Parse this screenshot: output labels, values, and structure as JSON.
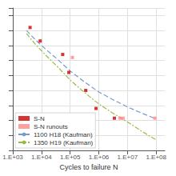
{
  "chart_data": {
    "type": "scatter",
    "xlabel": "Cycles to failure Ν",
    "log": "x",
    "grid": true,
    "legend": "lower left",
    "tick_labels": "x",
    "xlim": [
      1000,
      200000000
    ],
    "ylim": [
      0.1,
      1.05
    ],
    "xticks": [
      {
        "value": 1000,
        "label": "1.E+03"
      },
      {
        "value": 10000,
        "label": "1.E+04"
      },
      {
        "value": 100000,
        "label": "1.E+05"
      },
      {
        "value": 1000000,
        "label": "1.E+06"
      },
      {
        "value": 10000000,
        "label": "1.E+07"
      },
      {
        "value": 100000000,
        "label": "1.E+08"
      }
    ],
    "yticks": [
      0.1,
      0.2,
      0.3,
      0.4,
      0.5,
      0.6,
      0.7,
      0.8,
      0.9,
      1.0
    ],
    "series": [
      {
        "name": "S-N",
        "type": "scatter",
        "marker": "square",
        "color": "#cc0000",
        "x": [
          4000,
          9000,
          55000,
          90000,
          350000,
          800000,
          3500000
        ],
        "values": [
          0.92,
          0.83,
          0.74,
          0.62,
          0.5,
          0.38,
          0.315
        ]
      },
      {
        "name": "S-N runouts",
        "type": "scatter",
        "marker": "square",
        "color": "#ff8888",
        "x": [
          120000,
          5500000,
          7000000,
          90000000
        ],
        "values": [
          0.72,
          0.315,
          0.315,
          0.315
        ]
      },
      {
        "name": "1100 H18 (Kaufman)",
        "type": "line",
        "line_style": "dashed",
        "color": "#7799cc",
        "x": [
          3000,
          6000,
          15000,
          40000,
          100000,
          300000,
          1000000,
          3000000,
          10000000,
          30000000,
          100000000
        ],
        "values": [
          0.9,
          0.84,
          0.77,
          0.7,
          0.63,
          0.56,
          0.49,
          0.44,
          0.39,
          0.35,
          0.31
        ]
      },
      {
        "name": "1350 H19 (Kaufman)",
        "type": "line",
        "line_style": "dashdot",
        "color": "#99bb44",
        "x": [
          3000,
          6000,
          15000,
          40000,
          100000,
          300000,
          1000000,
          3000000,
          10000000,
          30000000,
          100000000
        ],
        "values": [
          0.88,
          0.81,
          0.73,
          0.65,
          0.57,
          0.49,
          0.41,
          0.35,
          0.29,
          0.23,
          0.17
        ]
      }
    ]
  }
}
